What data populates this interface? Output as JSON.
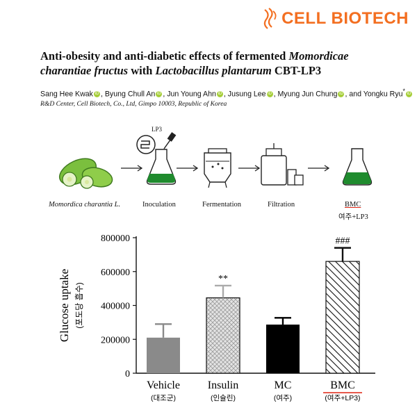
{
  "logo": {
    "text": "CELL BIOTECH",
    "color": "#f36f21"
  },
  "title": {
    "part1": "Anti-obesity and anti-diabetic effects of fermented ",
    "italic1": "Momordicae charantiae fructus",
    "part2": " with ",
    "italic2": "Lactobacillus plantarum",
    "part3": " CBT-LP3"
  },
  "authors": [
    {
      "name": "Sang Hee Kwak",
      "mark": ""
    },
    {
      "name": "Byung Chull An",
      "mark": ""
    },
    {
      "name": "Jun Young Ahn",
      "mark": ""
    },
    {
      "name": "Jusung Lee",
      "mark": ""
    },
    {
      "name": "Myung Jun Chung",
      "mark": ""
    },
    {
      "name": "Yongku Ryu",
      "mark": "*"
    }
  ],
  "author_joiner_last": "and",
  "affiliation": "R&D Center, Cell Biotech, Co., Ltd, Gimpo 10003, Republic of Korea",
  "flow": {
    "lp3": "LP3",
    "steps": [
      "Momordica charantia L.",
      "Inoculation",
      "Fermentation",
      "Filtration",
      "BMC"
    ],
    "bmc_sub": "여주+LP3"
  },
  "chart_data": {
    "type": "bar",
    "ylabel": "Glucose uptake",
    "ylabel_sub": "(포도당 흡수)",
    "ylim": [
      0,
      800000
    ],
    "yticks": [
      "0",
      "200000",
      "400000",
      "600000",
      "800000"
    ],
    "categories": [
      "Vehicle",
      "Insulin",
      "MC",
      "BMC"
    ],
    "categories_sub": [
      "(대조군)",
      "(인슐린)",
      "(여주)",
      "(여주+LP3)"
    ],
    "values": [
      210000,
      445000,
      287000,
      660000
    ],
    "errors": [
      80000,
      72000,
      40000,
      80000
    ],
    "annotations": [
      "",
      "**",
      "",
      "###"
    ],
    "colors": [
      "#8a8a8a",
      "#cfcfcf",
      "#000000",
      "#ffffff"
    ],
    "patterns": [
      "solid",
      "crosshatch",
      "solid",
      "diagonal"
    ]
  }
}
